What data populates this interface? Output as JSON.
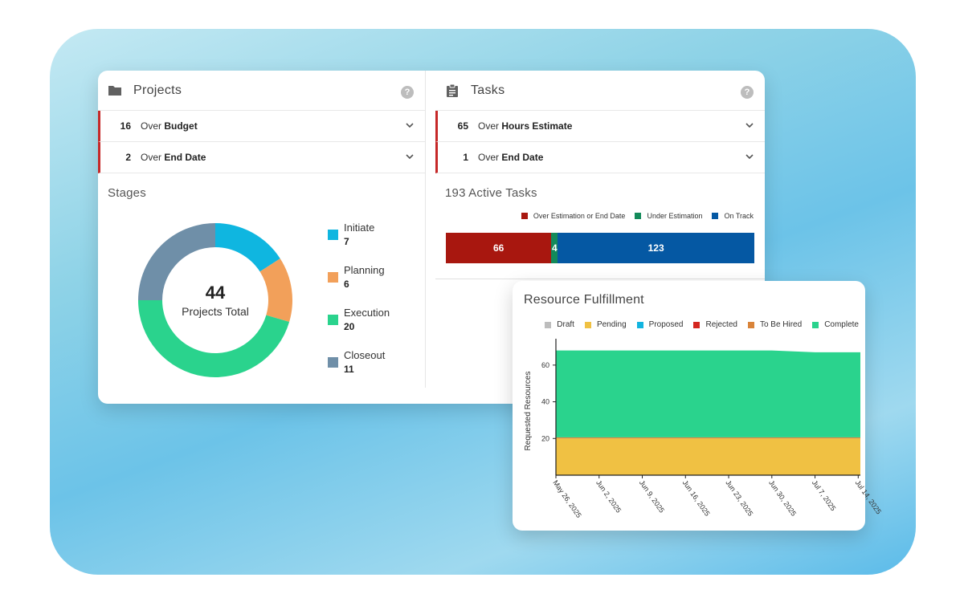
{
  "projects": {
    "title": "Projects",
    "help": "?",
    "alerts": [
      {
        "count": "16",
        "prefix": "Over",
        "emphasis": "Budget"
      },
      {
        "count": "2",
        "prefix": "Over",
        "emphasis": "End Date"
      }
    ],
    "stages_title": "Stages",
    "donut_total": "44",
    "donut_total_label": "Projects Total",
    "stages": [
      {
        "name": "Initiate",
        "value": 7,
        "color": "#0fb6e0"
      },
      {
        "name": "Planning",
        "value": 6,
        "color": "#f2a05a"
      },
      {
        "name": "Execution",
        "value": 20,
        "color": "#2ad38d"
      },
      {
        "name": "Closeout",
        "value": 11,
        "color": "#6f8fa8"
      }
    ]
  },
  "tasks": {
    "title": "Tasks",
    "help": "?",
    "alerts": [
      {
        "count": "65",
        "prefix": "Over",
        "emphasis": "Hours Estimate"
      },
      {
        "count": "1",
        "prefix": "Over",
        "emphasis": "End Date"
      }
    ],
    "active_title": "193 Active Tasks",
    "legend": [
      {
        "name": "Over Estimation or End Date",
        "color": "#a8170f"
      },
      {
        "name": "Under Estimation",
        "color": "#138a5a"
      },
      {
        "name": "On Track",
        "color": "#0558a3"
      }
    ],
    "bar": [
      {
        "value": 66,
        "label": "66",
        "color": "#a8170f"
      },
      {
        "value": 4,
        "label": "4",
        "color": "#138a5a"
      },
      {
        "value": 123,
        "label": "123",
        "color": "#0558a3"
      }
    ]
  },
  "resource": {
    "title": "Resource Fulfillment",
    "legend": [
      {
        "name": "Draft",
        "color": "#bdbdbd"
      },
      {
        "name": "Pending",
        "color": "#f0c143"
      },
      {
        "name": "Proposed",
        "color": "#12b4e0"
      },
      {
        "name": "Rejected",
        "color": "#d4261f"
      },
      {
        "name": "To Be Hired",
        "color": "#d9843a"
      },
      {
        "name": "Complete",
        "color": "#2ad38d"
      }
    ]
  },
  "chart_data": {
    "type": "area",
    "title": "Resource Fulfillment",
    "xlabel": "",
    "ylabel": "Requested Resources",
    "x": [
      "May 26, 2025",
      "Jun 2, 2025",
      "Jun 9, 2025",
      "Jun 16, 2025",
      "Jun 23, 2025",
      "Jun 30, 2025",
      "Jul 7, 2025",
      "Jul 14, 2025"
    ],
    "yticks": [
      20,
      40,
      60
    ],
    "ylim": [
      0,
      70
    ],
    "stacked": true,
    "series": [
      {
        "name": "Pending",
        "color": "#f0c143",
        "values": [
          20,
          20,
          20,
          20,
          20,
          20,
          20,
          20
        ]
      },
      {
        "name": "To Be Hired",
        "color": "#d9843a",
        "values": [
          0.6,
          0.6,
          0.6,
          0.6,
          0.6,
          0.6,
          0.6,
          0.6
        ]
      },
      {
        "name": "Complete",
        "color": "#2ad38d",
        "values": [
          47.4,
          47.4,
          47.4,
          47.4,
          47.4,
          47.4,
          46.4,
          46.4
        ]
      }
    ],
    "legend_position": "top"
  }
}
